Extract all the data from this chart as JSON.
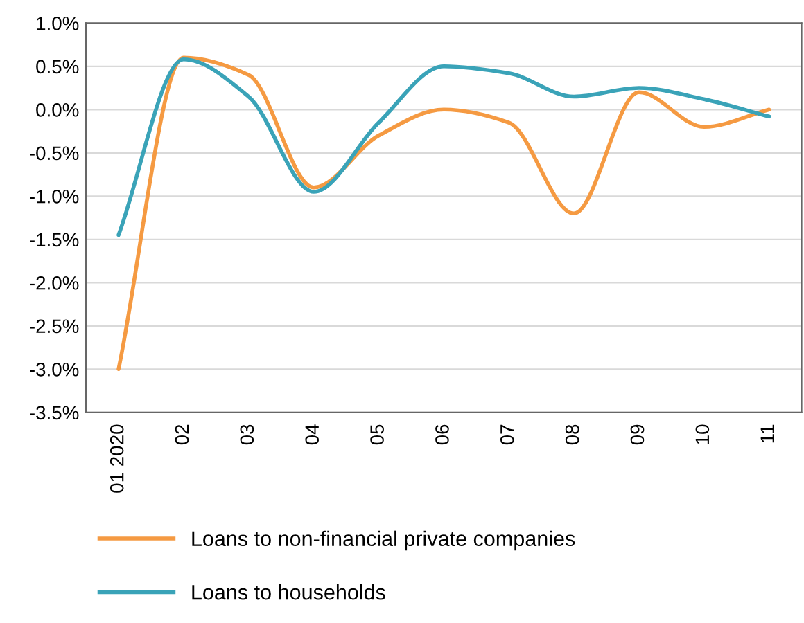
{
  "chart_data": {
    "type": "line",
    "categories": [
      "01 2020",
      "02",
      "03",
      "04",
      "05",
      "06",
      "07",
      "08",
      "09",
      "10",
      "11"
    ],
    "series": [
      {
        "name": "Loans to non-financial private companies",
        "color": "#f59a42",
        "values": [
          -3.0,
          0.6,
          0.4,
          -0.9,
          -0.3,
          0.0,
          -0.15,
          -1.2,
          0.2,
          -0.2,
          0.0
        ]
      },
      {
        "name": "Loans to households",
        "color": "#3aa3b8",
        "values": [
          -1.45,
          0.58,
          0.15,
          -0.95,
          -0.15,
          0.5,
          0.42,
          0.15,
          0.25,
          0.12,
          -0.08
        ]
      }
    ],
    "ylim": [
      -3.5,
      1.0
    ],
    "yticks": [
      {
        "value": -3.5,
        "label": "-3.5%"
      },
      {
        "value": -3.0,
        "label": "-3.0%"
      },
      {
        "value": -2.5,
        "label": "-2.5%"
      },
      {
        "value": -2.0,
        "label": "-2.0%"
      },
      {
        "value": -1.5,
        "label": "-1.5%"
      },
      {
        "value": -1.0,
        "label": "-1.0%"
      },
      {
        "value": -0.5,
        "label": "-0.5%"
      },
      {
        "value": 0.0,
        "label": "0.0%"
      },
      {
        "value": 0.5,
        "label": "0.5%"
      },
      {
        "value": 1.0,
        "label": "1.0%"
      }
    ],
    "grid": "y",
    "legend": "bottom",
    "marker": "none",
    "line_style": "solid"
  }
}
